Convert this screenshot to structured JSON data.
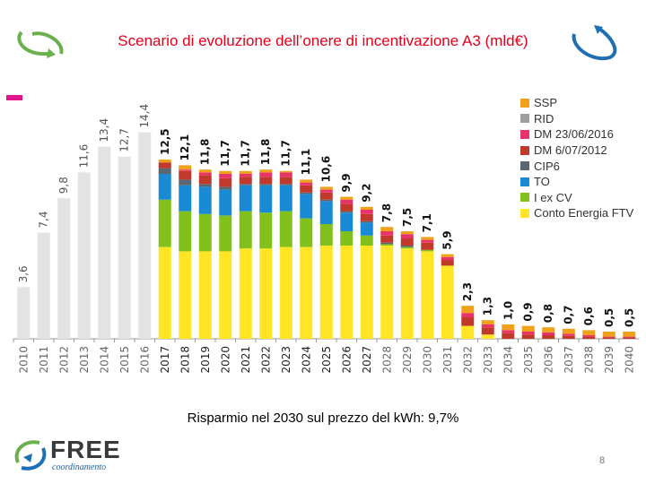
{
  "slide": {
    "title": "Scenario di evoluzione dell’onere di incentivazione A3 (mld€)",
    "subtitle": "Risparmio nel 2030 sul prezzo del kWh: 9,7%",
    "page_number": "8",
    "logo_text": "FREE",
    "logo_subtext": "coordinamento"
  },
  "chart_data": {
    "type": "bar",
    "stacked": true,
    "title": "Scenario di evoluzione dell’onere di incentivazione A3 (mld€)",
    "xlabel": "",
    "ylabel": "",
    "ylim": [
      0,
      15
    ],
    "grid": false,
    "legend_position": "top-right",
    "categories": [
      "2010",
      "2011",
      "2012",
      "2013",
      "2014",
      "2015",
      "2016",
      "2017",
      "2018",
      "2019",
      "2020",
      "2021",
      "2022",
      "2023",
      "2024",
      "2025",
      "2026",
      "2027",
      "2028",
      "2029",
      "2030",
      "2031",
      "2032",
      "2033",
      "2034",
      "2035",
      "2036",
      "2037",
      "2038",
      "2039",
      "2040"
    ],
    "totals": [
      3.6,
      7.4,
      9.8,
      11.6,
      13.4,
      12.7,
      14.4,
      12.5,
      12.1,
      11.8,
      11.7,
      11.7,
      11.8,
      11.7,
      11.1,
      10.6,
      9.9,
      9.2,
      7.8,
      7.5,
      7.1,
      5.9,
      2.3,
      1.3,
      1.0,
      0.9,
      0.8,
      0.7,
      0.6,
      0.5,
      0.5
    ],
    "total_labels": [
      "3,6",
      "7,4",
      "9,8",
      "11,6",
      "13,4",
      "12,7",
      "14,4",
      "12,5",
      "12,1",
      "11,8",
      "11,7",
      "11,7",
      "11,8",
      "11,7",
      "11,1",
      "10,6",
      "9,9",
      "9,2",
      "7,8",
      "7,5",
      "7,1",
      "5,9",
      "2,3",
      "1,3",
      "1,0",
      "0,9",
      "0,8",
      "0,7",
      "0,6",
      "0,5",
      "0,5"
    ],
    "historical_color": "#e3e3e3",
    "historical_count": 7,
    "series": [
      {
        "name": "Conto Energia FTV",
        "color": "#ffe524",
        "values": [
          0,
          0,
          0,
          0,
          0,
          0,
          0,
          6.4,
          6.1,
          6.1,
          6.1,
          6.3,
          6.3,
          6.4,
          6.4,
          6.5,
          6.5,
          6.5,
          6.5,
          6.3,
          6.1,
          5.1,
          0.9,
          0.3,
          0,
          0,
          0,
          0,
          0,
          0,
          0
        ]
      },
      {
        "name": "I ex CV",
        "color": "#82c11c",
        "values": [
          0,
          0,
          0,
          0,
          0,
          0,
          0,
          3.3,
          2.8,
          2.6,
          2.5,
          2.6,
          2.5,
          2.5,
          2.0,
          1.5,
          1.0,
          0.7,
          0.1,
          0.1,
          0.1,
          0,
          0,
          0,
          0,
          0,
          0,
          0,
          0,
          0,
          0
        ]
      },
      {
        "name": "TO",
        "color": "#1a8ad4",
        "values": [
          0,
          0,
          0,
          0,
          0,
          0,
          0,
          1.8,
          1.8,
          1.9,
          1.8,
          1.8,
          1.9,
          1.8,
          1.7,
          1.6,
          1.3,
          0.9,
          0,
          0,
          0,
          0,
          0,
          0,
          0,
          0,
          0,
          0,
          0,
          0,
          0
        ]
      },
      {
        "name": "CIP6",
        "color": "#5a6670",
        "values": [
          0,
          0,
          0,
          0,
          0,
          0,
          0,
          0.4,
          0.4,
          0.2,
          0.2,
          0.1,
          0.1,
          0.1,
          0.1,
          0.1,
          0.1,
          0.1,
          0.1,
          0.1,
          0,
          0,
          0,
          0,
          0,
          0,
          0,
          0,
          0,
          0,
          0
        ]
      },
      {
        "name": "DM 6/07/2012",
        "color": "#c0392b",
        "values": [
          0,
          0,
          0,
          0,
          0,
          0,
          0,
          0.4,
          0.6,
          0.6,
          0.6,
          0.5,
          0.5,
          0.5,
          0.5,
          0.5,
          0.5,
          0.5,
          0.5,
          0.5,
          0.5,
          0.4,
          0.6,
          0.5,
          0.4,
          0.3,
          0.25,
          0.2,
          0.15,
          0.1,
          0.1
        ]
      },
      {
        "name": "DM 23/06/2016",
        "color": "#e8336a",
        "values": [
          0,
          0,
          0,
          0,
          0,
          0,
          0,
          0,
          0.1,
          0.2,
          0.3,
          0.2,
          0.3,
          0.3,
          0.2,
          0.2,
          0.3,
          0.3,
          0.3,
          0.3,
          0.2,
          0.2,
          0.3,
          0.2,
          0.2,
          0.2,
          0.2,
          0.15,
          0.1,
          0.05,
          0.05
        ]
      },
      {
        "name": "RID",
        "color": "#9e9e9e",
        "values": [
          0,
          0,
          0,
          0,
          0,
          0,
          0,
          0,
          0,
          0,
          0,
          0,
          0,
          0,
          0,
          0,
          0,
          0,
          0,
          0,
          0,
          0,
          0,
          0,
          0,
          0,
          0,
          0,
          0,
          0,
          0
        ]
      },
      {
        "name": "SSP",
        "color": "#f0a11a",
        "values": [
          0,
          0,
          0,
          0,
          0,
          0,
          0,
          0.2,
          0.3,
          0.2,
          0.2,
          0.2,
          0.2,
          0.1,
          0.2,
          0.2,
          0.2,
          0.2,
          0.3,
          0.2,
          0.2,
          0.2,
          0.5,
          0.3,
          0.4,
          0.4,
          0.35,
          0.35,
          0.35,
          0.35,
          0.35
        ]
      }
    ],
    "legend": [
      "SSP",
      "RID",
      "DM 23/06/2016",
      "DM 6/07/2012",
      "CIP6",
      "TO",
      "I ex CV",
      "Conto Energia FTV"
    ]
  }
}
